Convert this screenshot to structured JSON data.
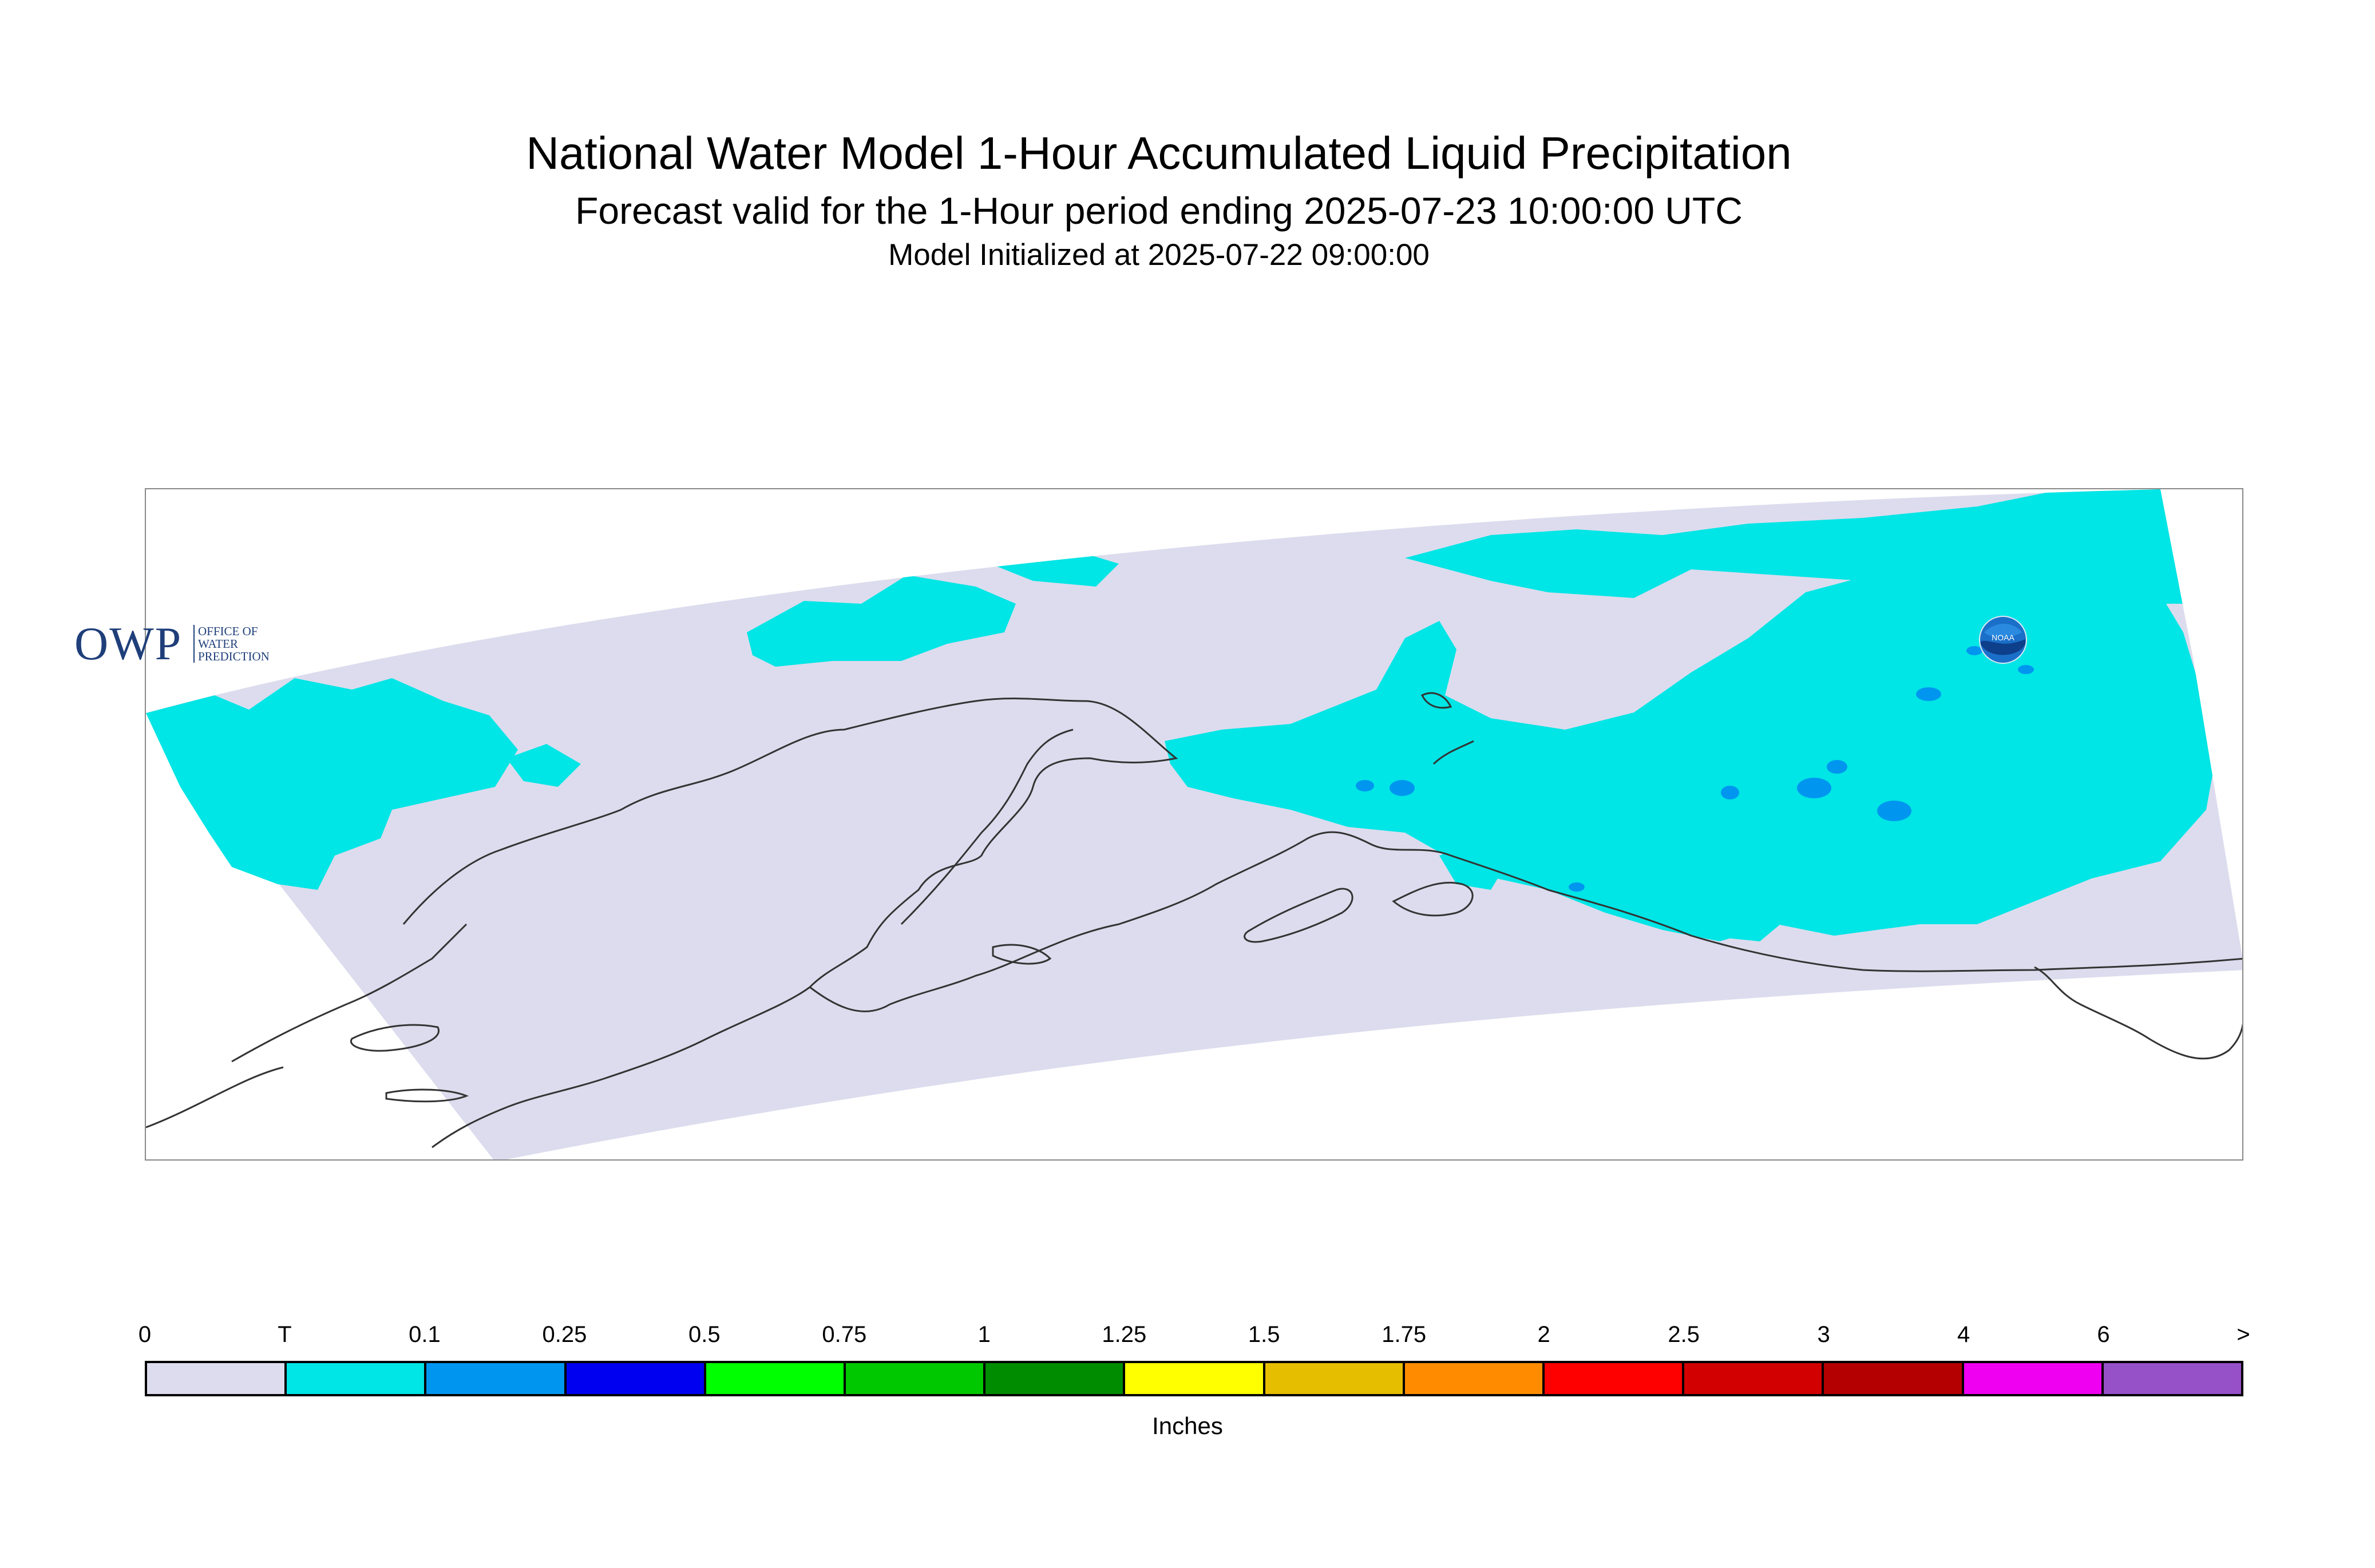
{
  "header": {
    "title": "National Water Model 1-Hour Accumulated Liquid Precipitation",
    "subtitle": "Forecast valid for the 1-Hour period ending 2025-07-23 10:00:00 UTC",
    "init_line": "Model Initialized at 2025-07-22 09:00:00"
  },
  "map": {
    "region_fill_color": "#dcdcee",
    "precip_trace_color": "#00e5e5",
    "precip_light_color": "#0096f0",
    "coastline_color": "#333333"
  },
  "logos": {
    "owp": {
      "word": "OWP",
      "sub_lines": [
        "OFFICE OF",
        "WATER",
        "PREDICTION"
      ]
    },
    "noaa": {
      "word": "NOAA",
      "icon": "noaa-emblem-icon"
    }
  },
  "legend": {
    "labels": [
      "0",
      "T",
      "0.1",
      "0.25",
      "0.5",
      "0.75",
      "1",
      "1.25",
      "1.5",
      "1.75",
      "2",
      "2.5",
      "3",
      "4",
      "6",
      ">"
    ],
    "colors": [
      "#dcdcee",
      "#00e5e5",
      "#0096f0",
      "#0000f0",
      "#00ff00",
      "#00c800",
      "#008c00",
      "#ffff00",
      "#e6be00",
      "#ff8c00",
      "#ff0000",
      "#d20000",
      "#b40000",
      "#f000f0",
      "#9650c8"
    ],
    "units": "Inches"
  }
}
